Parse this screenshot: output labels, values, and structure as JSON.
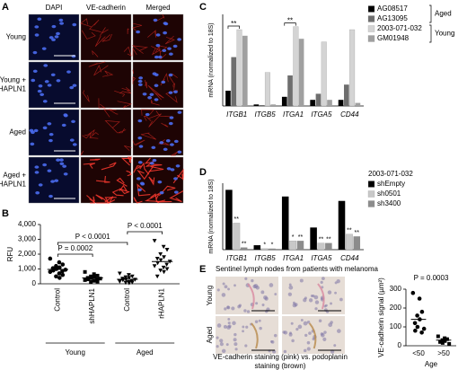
{
  "panels": {
    "labels": [
      "A",
      "B",
      "C",
      "D",
      "E"
    ]
  },
  "panel_a": {
    "columns": [
      "DAPI",
      "VE-cadherin",
      "Merged"
    ],
    "rows": [
      [
        "Young"
      ],
      [
        "Young +",
        "shHAPLN1"
      ],
      [
        "Aged"
      ],
      [
        "Aged +",
        "rHAPLN1"
      ]
    ]
  },
  "panel_e": {
    "title": "Sentinel lymph nodes from patients with melanoma",
    "rows": [
      "Young",
      "Aged"
    ],
    "caption": [
      "VE-cadherin staining (pink) vs. podoplanin",
      "staining (brown)"
    ]
  },
  "chart_data": [
    {
      "type": "strip",
      "y_label": "RFU",
      "categories": [
        "Control",
        "shHAPLN1",
        "Control",
        "rHAPLN1"
      ],
      "groups": [
        "Young",
        "Aged"
      ],
      "markers": [
        "circle",
        "square",
        "triangle-down",
        "triangle-down"
      ],
      "color": "#000000",
      "values": [
        [
          1700,
          1450,
          1300,
          1200,
          1100,
          1050,
          1000,
          950,
          900,
          850,
          800,
          700,
          600,
          500,
          400
        ],
        [
          800,
          650,
          550,
          500,
          450,
          400,
          380,
          350,
          300,
          280,
          250,
          200,
          150,
          120
        ],
        [
          700,
          600,
          500,
          450,
          400,
          350,
          300,
          280,
          250,
          200,
          150,
          120,
          100,
          80,
          50
        ],
        [
          2900,
          2500,
          2300,
          2000,
          1800,
          1700,
          1600,
          1500,
          1400,
          1300,
          1200,
          1100,
          1000,
          900,
          800,
          500
        ]
      ],
      "means": [
        970,
        400,
        300,
        1500
      ],
      "ylim": [
        0,
        4000
      ],
      "yticks": [
        {
          "value": 0,
          "label": "0"
        },
        {
          "value": 1000,
          "label": "1,000"
        },
        {
          "value": 2000,
          "label": "2,000"
        },
        {
          "value": 3000,
          "label": "3,000"
        },
        {
          "value": 4000,
          "label": "4,000"
        }
      ],
      "annotations": [
        "P = 0.0002",
        "P < 0.0001",
        "P < 0.0001"
      ]
    },
    {
      "type": "bar",
      "y_label": "mRNA (normalized to 18S)",
      "categories": [
        "ITGB1",
        "ITGB5",
        "ITGA1",
        "ITGA5",
        "CD44"
      ],
      "ylim": [
        0,
        30
      ],
      "legend_groups": [
        "Aged",
        "Young"
      ],
      "series": [
        {
          "name": "AG08517",
          "color": "#000000",
          "values": [
            5,
            0.5,
            3,
            2,
            2
          ]
        },
        {
          "name": "AG13095",
          "color": "#6e6e6e",
          "values": [
            16,
            0.3,
            10,
            4,
            7
          ]
        },
        {
          "name": "2003-071-032",
          "color": "#d4d4d4",
          "values": [
            25,
            11,
            26,
            21,
            25
          ],
          "annotations": [
            "**",
            null,
            "**",
            null,
            null
          ]
        },
        {
          "name": "GM01948",
          "color": "#a0a0a0",
          "values": [
            23,
            0.5,
            22,
            2,
            1
          ]
        }
      ]
    },
    {
      "type": "bar",
      "y_label": "mRNA (normalized to 18S)",
      "categories": [
        "ITGB1",
        "ITGB5",
        "ITGA1",
        "ITGA5",
        "CD44"
      ],
      "ylim": [
        0,
        30
      ],
      "legend_title": "2003-071-032",
      "series": [
        {
          "name": "shEmpty",
          "color": "#000000",
          "values": [
            27,
            2,
            24,
            10,
            22
          ]
        },
        {
          "name": "sh0501",
          "color": "#c8c8c8",
          "values": [
            12,
            0.5,
            4,
            3,
            7
          ],
          "annotations": [
            "**",
            "*",
            "*",
            "**",
            "**"
          ]
        },
        {
          "name": "sh3400",
          "color": "#8c8c8c",
          "values": [
            1,
            0.5,
            4,
            3,
            6
          ],
          "annotations": [
            "**",
            "*",
            "**",
            "**",
            "**"
          ]
        }
      ]
    },
    {
      "type": "strip",
      "y_label": "VE-cadherin signal (µm²)",
      "x_label": "Age",
      "categories": [
        "<50",
        ">50"
      ],
      "markers": [
        "circle",
        "square"
      ],
      "color": "#000000",
      "values": [
        [
          280,
          250,
          180,
          160,
          140,
          120,
          100,
          90,
          80,
          70
        ],
        [
          50,
          40,
          35,
          30,
          25,
          20,
          15,
          10
        ]
      ],
      "means": [
        140,
        30
      ],
      "ylim": [
        0,
        300
      ],
      "yticks": [
        0,
        100,
        200,
        300
      ],
      "annotations": [
        "P = 0.0003"
      ]
    }
  ]
}
